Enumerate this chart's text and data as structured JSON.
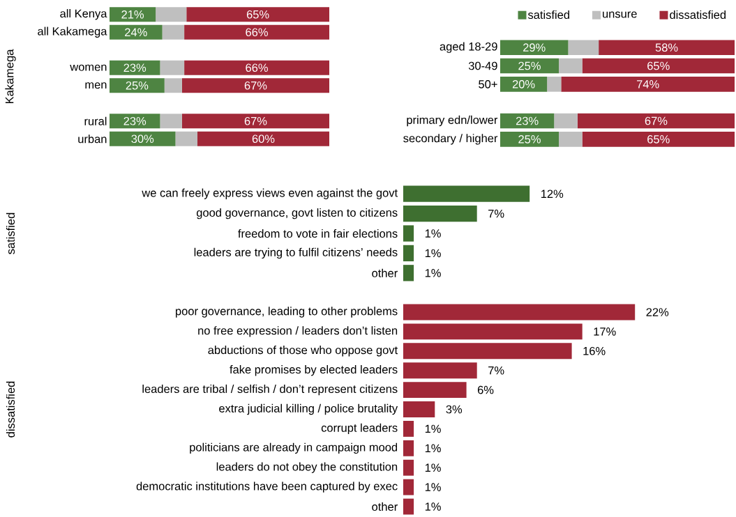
{
  "chart_data": [
    {
      "type": "bar",
      "orientation": "horizontal",
      "stacked": true,
      "ylabel": "Kakamega",
      "categories": [
        "all Kenya",
        "all Kakamega",
        null,
        "women",
        "men",
        null,
        "rural",
        "urban"
      ],
      "tick_labels": "y",
      "series": [
        {
          "color": "#4e8442",
          "values": [
            21,
            24,
            null,
            23,
            25,
            null,
            23,
            30
          ],
          "value_labels": [
            "21%",
            "24%",
            null,
            "23%",
            "25%",
            null,
            "23%",
            "30%"
          ]
        },
        {
          "color": "#bfbfbf",
          "values": [
            14,
            10,
            null,
            11,
            8,
            null,
            10,
            10
          ]
        },
        {
          "color": "#a12838",
          "values": [
            65,
            66,
            null,
            66,
            67,
            null,
            67,
            60
          ],
          "value_labels": [
            "65%",
            "66%",
            null,
            "66%",
            "67%",
            null,
            "67%",
            "60%"
          ]
        }
      ]
    },
    {
      "type": "bar",
      "orientation": "horizontal",
      "stacked": true,
      "categories": [
        "aged 18-29",
        "30-49",
        "50+",
        null,
        "primary edn/lower",
        "secondary / higher"
      ],
      "tick_labels": "y",
      "legend": "top",
      "series": [
        {
          "name": "satisfied",
          "color": "#4e8442",
          "values": [
            29,
            25,
            20,
            null,
            23,
            25
          ],
          "value_labels": [
            "29%",
            "25%",
            "20%",
            null,
            "23%",
            "25%"
          ]
        },
        {
          "name": "unsure",
          "color": "#bfbfbf",
          "values": [
            13,
            10,
            6,
            null,
            10,
            10
          ]
        },
        {
          "name": "dissatisfied",
          "color": "#a12838",
          "values": [
            58,
            65,
            74,
            null,
            67,
            65
          ],
          "value_labels": [
            "58%",
            "65%",
            "74%",
            null,
            "67%",
            "65%"
          ]
        }
      ]
    },
    {
      "type": "bar",
      "orientation": "horizontal",
      "ylabel": "satisfied",
      "categories": [
        "we can freely express views even against the govt",
        "good governance, govt listen to citizens",
        "freedom to vote in fair elections",
        "leaders are trying to fulfil citizens’ needs",
        "other"
      ],
      "tick_labels": "y",
      "series": [
        {
          "color": "#3e6f30",
          "values": [
            12,
            7,
            1,
            1,
            1
          ],
          "value_labels": [
            "12%",
            "7%",
            "1%",
            "1%",
            "1%"
          ]
        }
      ]
    },
    {
      "type": "bar",
      "orientation": "horizontal",
      "ylabel": "dissatisfied",
      "categories": [
        "poor governance, leading to other problems",
        "no free expression / leaders don’t listen",
        "abductions of those who oppose govt",
        "fake promises by elected leaders",
        "leaders are tribal / selfish / don’t represent citizens",
        "extra judicial killing / police brutality",
        "corrupt leaders",
        "politicians are already in campaign mood",
        "leaders do not obey the constitution",
        "democratic institutions have been captured by exec",
        "other"
      ],
      "tick_labels": "y",
      "series": [
        {
          "color": "#a12838",
          "values": [
            22,
            17,
            16,
            7,
            6,
            3,
            1,
            1,
            1,
            1,
            1
          ],
          "value_labels": [
            "22%",
            "17%",
            "16%",
            "7%",
            "6%",
            "3%",
            "1%",
            "1%",
            "1%",
            "1%",
            "1%"
          ]
        }
      ]
    }
  ]
}
